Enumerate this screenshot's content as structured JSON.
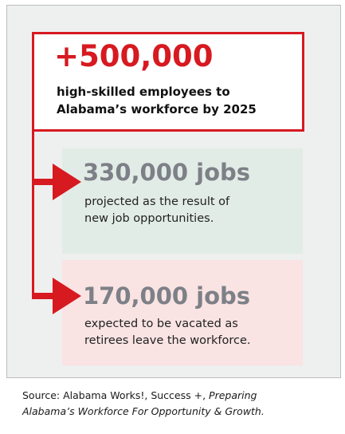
{
  "headline": {
    "number": "+500,000",
    "line1": "high-skilled employees to",
    "line2": "Alabama’s workforce by 2025"
  },
  "stats": [
    {
      "number": "330,000 jobs",
      "line1": "projected as the result of",
      "line2": "new job opportunities."
    },
    {
      "number": "170,000 jobs",
      "line1": "expected to be vacated as",
      "line2": "retirees leave the workforce."
    }
  ],
  "source": {
    "prefix": "Source: Alabama Works!, Success +, ",
    "title_part1": "Preparing",
    "title_part2": "Alabama’s Workforce For Opportunity & Growth."
  },
  "colors": {
    "accent_red": "#d71920",
    "stat_gray": "#7d8087",
    "green_box": "#e2ece6",
    "pink_box": "#f9e3e3"
  },
  "icons": [
    "arrow-right-icon",
    "arrow-right-icon"
  ]
}
